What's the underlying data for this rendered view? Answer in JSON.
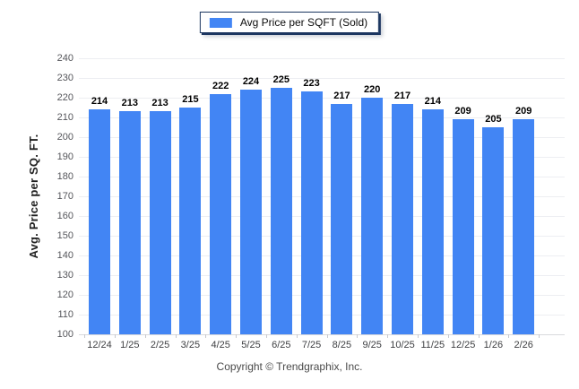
{
  "legend": {
    "label": "Avg Price per SQFT (Sold)"
  },
  "footer": {
    "text": "Copyright © Trendgraphix, Inc."
  },
  "colors": {
    "bar": "#4285F4",
    "legend_border": "#1C3660",
    "grid": "#EDEEF2",
    "baseline": "#D8D9DD",
    "tick": "#C8C9CE",
    "value_label": "#000000",
    "x_label": "#3F4043",
    "y_label": "#55565B"
  },
  "chart_data": {
    "type": "bar",
    "title": "Avg Price per SQFT (Sold)",
    "categories": [
      "12/24",
      "1/25",
      "2/25",
      "3/25",
      "4/25",
      "5/25",
      "6/25",
      "7/25",
      "8/25",
      "9/25",
      "10/25",
      "11/25",
      "12/25",
      "1/26",
      "2/26"
    ],
    "values": [
      214,
      213,
      213,
      215,
      222,
      224,
      225,
      223,
      217,
      220,
      217,
      214,
      209,
      205,
      209
    ],
    "xlabel": "",
    "ylabel": "Avg. Price per SQ. FT.",
    "ylim": [
      100,
      240
    ],
    "ytick_step": 10,
    "grid": true,
    "legend_position": "top-center"
  }
}
